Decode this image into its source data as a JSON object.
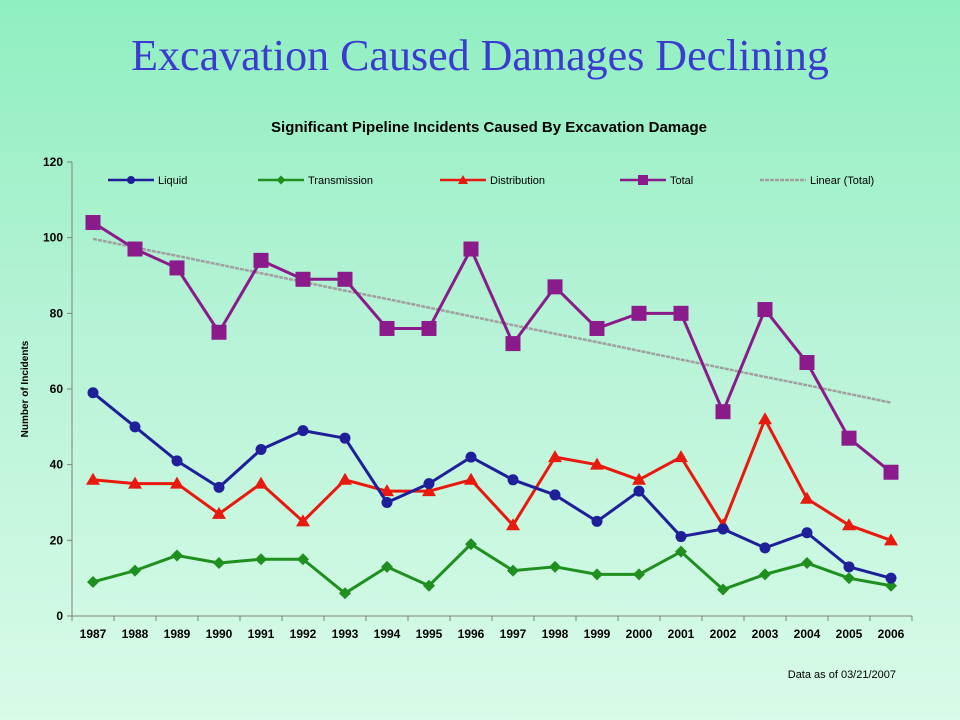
{
  "slide": {
    "title": "Excavation Caused Damages Declining"
  },
  "chart_data": {
    "type": "line",
    "title": "Significant Pipeline Incidents Caused By Excavation Damage",
    "xlabel": "",
    "ylabel": "Number of Incidents",
    "ylim": [
      0,
      120
    ],
    "yticks": [
      0,
      20,
      40,
      60,
      80,
      100,
      120
    ],
    "grid": false,
    "legend_position": "top",
    "categories": [
      "1987",
      "1988",
      "1989",
      "1990",
      "1991",
      "1992",
      "1993",
      "1994",
      "1995",
      "1996",
      "1997",
      "1998",
      "1999",
      "2000",
      "2001",
      "2002",
      "2003",
      "2004",
      "2005",
      "2006"
    ],
    "series": [
      {
        "name": "Liquid",
        "color": "#1f1f9a",
        "marker": "circle",
        "values": [
          59,
          50,
          41,
          34,
          44,
          49,
          47,
          30,
          35,
          42,
          36,
          32,
          25,
          33,
          21,
          23,
          18,
          22,
          13,
          10
        ]
      },
      {
        "name": "Transmission",
        "color": "#1f8f1f",
        "marker": "diamond",
        "values": [
          9,
          12,
          16,
          14,
          15,
          15,
          6,
          13,
          8,
          19,
          12,
          13,
          11,
          11,
          17,
          7,
          11,
          14,
          10,
          8
        ]
      },
      {
        "name": "Distribution",
        "color": "#e8190f",
        "marker": "triangle",
        "values": [
          36,
          35,
          35,
          27,
          35,
          25,
          36,
          33,
          33,
          36,
          24,
          42,
          40,
          36,
          42,
          24,
          52,
          31,
          24,
          20
        ]
      },
      {
        "name": "Total",
        "color": "#8b1a8b",
        "marker": "square",
        "values": [
          104,
          97,
          92,
          75,
          94,
          89,
          89,
          76,
          76,
          97,
          72,
          87,
          76,
          80,
          80,
          54,
          81,
          67,
          47,
          38
        ]
      },
      {
        "name": "Linear (Total)",
        "color": "#a0a0a0",
        "marker": "none",
        "trendline": true,
        "values": [
          99.7,
          97.4,
          95.2,
          92.9,
          90.6,
          88.3,
          86.0,
          83.8,
          81.5,
          79.2,
          76.9,
          74.6,
          72.4,
          70.1,
          67.8,
          65.5,
          63.2,
          61.0,
          58.7,
          56.4
        ]
      }
    ],
    "footnote": "Data as of  03/21/2007"
  }
}
